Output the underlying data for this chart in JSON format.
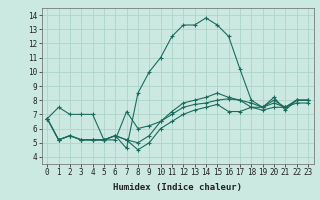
{
  "xlabel": "Humidex (Indice chaleur)",
  "xlim": [
    -0.5,
    23.5
  ],
  "ylim": [
    3.5,
    14.5
  ],
  "xticks": [
    0,
    1,
    2,
    3,
    4,
    5,
    6,
    7,
    8,
    9,
    10,
    11,
    12,
    13,
    14,
    15,
    16,
    17,
    18,
    19,
    20,
    21,
    22,
    23
  ],
  "yticks": [
    4,
    5,
    6,
    7,
    8,
    9,
    10,
    11,
    12,
    13,
    14
  ],
  "bg_color": "#cce9e1",
  "grid_color": "#aed4ca",
  "line_color": "#1a6b5e",
  "series": [
    [
      6.7,
      7.5,
      7.0,
      7.0,
      7.0,
      5.2,
      5.2,
      7.2,
      6.0,
      6.2,
      6.5,
      7.0,
      7.5,
      7.7,
      7.8,
      8.0,
      8.1,
      8.0,
      7.5,
      7.5,
      7.8,
      7.5,
      8.0,
      8.0
    ],
    [
      6.7,
      5.2,
      5.5,
      5.2,
      5.2,
      5.2,
      5.5,
      5.2,
      4.5,
      5.0,
      6.0,
      6.5,
      7.0,
      7.3,
      7.5,
      7.7,
      7.2,
      7.2,
      7.5,
      7.3,
      7.5,
      7.5,
      7.8,
      7.8
    ],
    [
      6.7,
      5.2,
      5.5,
      5.2,
      5.2,
      5.2,
      5.5,
      4.6,
      8.5,
      10.0,
      11.0,
      12.5,
      13.3,
      13.3,
      13.8,
      13.3,
      12.5,
      10.2,
      8.0,
      7.5,
      8.2,
      7.3,
      8.0,
      8.0
    ],
    [
      6.7,
      5.2,
      5.5,
      5.2,
      5.2,
      5.2,
      5.5,
      5.2,
      5.0,
      5.5,
      6.5,
      7.2,
      7.8,
      8.0,
      8.2,
      8.5,
      8.2,
      8.0,
      7.8,
      7.5,
      8.0,
      7.5,
      8.0,
      8.0
    ]
  ],
  "tick_fontsize": 5.5,
  "xlabel_fontsize": 6.5
}
